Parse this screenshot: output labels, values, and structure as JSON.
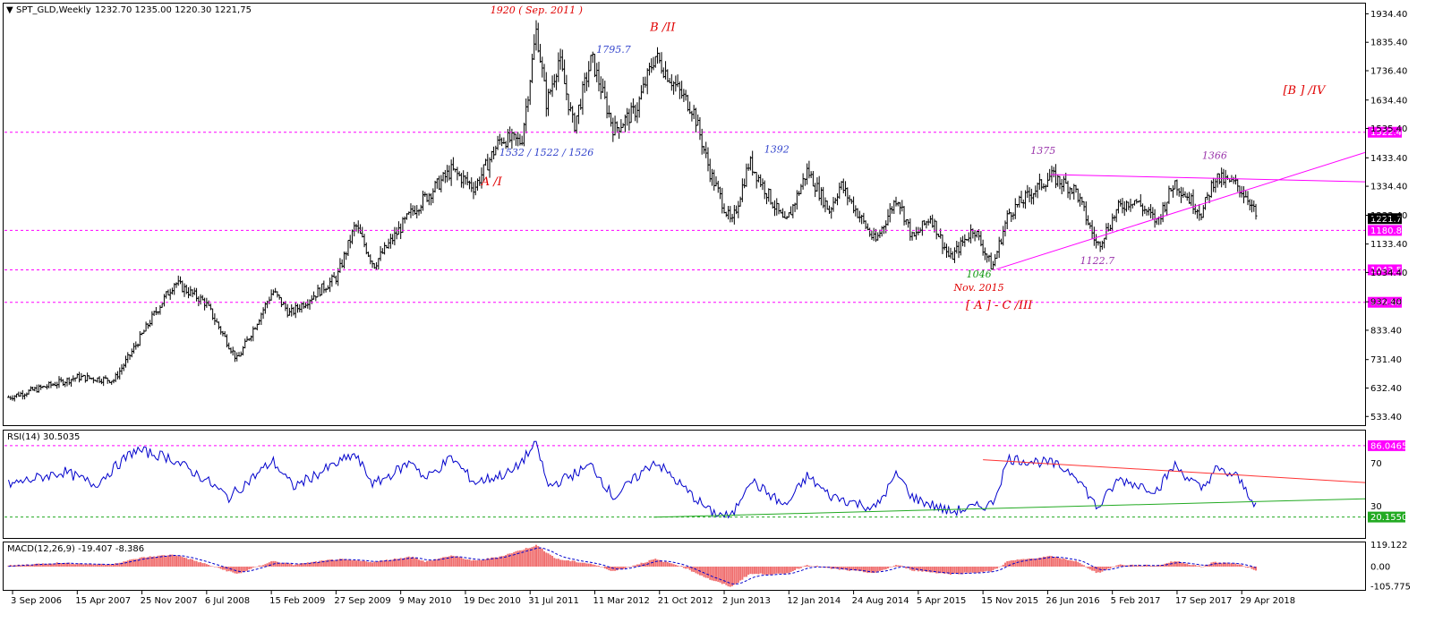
{
  "window": {
    "title": "SPT_GLD,Weekly",
    "ohlc": "1232.70 1235.00 1220.30 1221,75"
  },
  "colors": {
    "bar": "#000000",
    "hline": "#ff00ff",
    "wave_red": "#e00000",
    "wave_blue": "#3344cc",
    "wave_purple": "#9933aa",
    "wave_green": "#119911",
    "rsi_line": "#0000cc",
    "rsi_res": "#ff3333",
    "rsi_sup": "#22aa22",
    "macd_hist": "#f07070",
    "macd_signal": "#0000cc"
  },
  "chart_data": {
    "type": "candlestick",
    "price_axis_ticks": [
      "1934.40",
      "1835.40",
      "1736.40",
      "1634.40",
      "1535.40",
      "1433.40",
      "1334.40",
      "1233.40",
      "1133.40",
      "1034.40",
      "932.40",
      "833.40",
      "731.40",
      "632.40",
      "533.40"
    ],
    "price_range": [
      500,
      1970
    ],
    "time_range": [
      "2006-08-06",
      "2019-06-30"
    ],
    "x_ticks": [
      "3 Sep 2006",
      "15 Apr 2007",
      "25 Nov 2007",
      "6 Jul 2008",
      "15 Feb 2009",
      "27 Sep 2009",
      "9 May 2010",
      "19 Dec 2010",
      "31 Jul 2011",
      "11 Mar 2012",
      "21 Oct 2012",
      "2 Jun 2013",
      "12 Jan 2014",
      "24 Aug 2014",
      "5 Apr 2015",
      "15 Nov 2015",
      "26 Jun 2016",
      "5 Feb 2017",
      "17 Sep 2017",
      "29 Apr 2018"
    ],
    "price_path": [
      [
        "2006-08-20",
        600
      ],
      [
        "2006-12-01",
        630
      ],
      [
        "2007-04-15",
        670
      ],
      [
        "2007-08-20",
        660
      ],
      [
        "2007-10-10",
        740
      ],
      [
        "2008-01-01",
        880
      ],
      [
        "2008-03-17",
        1000
      ],
      [
        "2008-07-01",
        930
      ],
      [
        "2008-10-20",
        730
      ],
      [
        "2009-02-20",
        970
      ],
      [
        "2009-04-20",
        890
      ],
      [
        "2009-10-01",
        1020
      ],
      [
        "2009-12-03",
        1200
      ],
      [
        "2010-02-05",
        1060
      ],
      [
        "2010-06-20",
        1250
      ],
      [
        "2010-11-01",
        1390
      ],
      [
        "2011-01-20",
        1330
      ],
      [
        "2011-04-20",
        1500
      ],
      [
        "2011-07-01",
        1490
      ],
      [
        "2011-08-22",
        1880
      ],
      [
        "2011-09-26",
        1620
      ],
      [
        "2011-11-08",
        1780
      ],
      [
        "2011-12-29",
        1540
      ],
      [
        "2012-02-29",
        1780
      ],
      [
        "2012-05-16",
        1530
      ],
      [
        "2012-08-01",
        1600
      ],
      [
        "2012-10-05",
        1790
      ],
      [
        "2012-12-31",
        1660
      ],
      [
        "2013-02-15",
        1600
      ],
      [
        "2013-04-15",
        1380
      ],
      [
        "2013-06-28",
        1200
      ],
      [
        "2013-08-28",
        1420
      ],
      [
        "2013-12-31",
        1200
      ],
      [
        "2014-03-17",
        1390
      ],
      [
        "2014-06-01",
        1250
      ],
      [
        "2014-07-10",
        1340
      ],
      [
        "2014-11-07",
        1140
      ],
      [
        "2015-01-22",
        1300
      ],
      [
        "2015-03-17",
        1150
      ],
      [
        "2015-05-18",
        1230
      ],
      [
        "2015-07-24",
        1080
      ],
      [
        "2015-10-14",
        1190
      ],
      [
        "2015-12-17",
        1050
      ],
      [
        "2016-02-11",
        1240
      ],
      [
        "2016-07-06",
        1370
      ],
      [
        "2016-10-01",
        1320
      ],
      [
        "2016-12-15",
        1125
      ],
      [
        "2017-02-27",
        1260
      ],
      [
        "2017-04-20",
        1290
      ],
      [
        "2017-07-10",
        1210
      ],
      [
        "2017-09-08",
        1350
      ],
      [
        "2017-12-12",
        1240
      ],
      [
        "2018-01-25",
        1365
      ],
      [
        "2018-04-10",
        1340
      ],
      [
        "2018-05-25",
        1290
      ],
      [
        "2018-06-20",
        1221.75
      ]
    ],
    "horizontal_levels": [
      {
        "value": 1522.4,
        "label": "1522.40"
      },
      {
        "value": 1180.8,
        "label": "1180.80"
      },
      {
        "value": 1043.58,
        "label": "1043.58"
      },
      {
        "value": 930.69,
        "label": "930.69"
      }
    ],
    "current_price": "1221.75",
    "trend_lines": [
      {
        "from": [
          "2016-01-01",
          1046
        ],
        "to": [
          "2019-06-30",
          1452
        ]
      },
      {
        "from": [
          "2016-07-06",
          1375
        ],
        "to": [
          "2019-06-30",
          1350
        ]
      }
    ],
    "annotations": [
      {
        "text": "1920  ( Sep. 2011 )",
        "date": "2011-08-22",
        "price": 1935,
        "style": "red"
      },
      {
        "text": "B  /II",
        "date": "2012-11-01",
        "price": 1875,
        "style": "red-big"
      },
      {
        "text": "1795.7",
        "date": "2012-05-15",
        "price": 1798,
        "style": "blue"
      },
      {
        "text": "1532 / 1522 / 1526",
        "date": "2011-09-26",
        "price": 1441,
        "style": "blue"
      },
      {
        "text": "1392",
        "date": "2013-12-01",
        "price": 1451,
        "style": "blue"
      },
      {
        "text": "A  /I",
        "date": "2011-03-20",
        "price": 1338,
        "style": "red-big"
      },
      {
        "text": "1375",
        "date": "2016-06-10",
        "price": 1447,
        "style": "purple"
      },
      {
        "text": "1366",
        "date": "2018-01-25",
        "price": 1430,
        "style": "purple"
      },
      {
        "text": "[B ]  /IV",
        "date": "2018-12-01",
        "price": 1656,
        "style": "red-big"
      },
      {
        "text": "1122.7",
        "date": "2016-12-15",
        "price": 1064,
        "style": "purple"
      },
      {
        "text": "1046",
        "date": "2015-11-01",
        "price": 1017,
        "style": "green"
      },
      {
        "text": "Nov. 2015",
        "date": "2015-11-01",
        "price": 970,
        "style": "red"
      },
      {
        "text": "[ A ]  - C /III",
        "date": "2016-01-10",
        "price": 908,
        "style": "red-big"
      }
    ],
    "rsi": {
      "label": "RSI(14) 30.5035",
      "range": [
        0,
        100
      ],
      "ticks": [
        "70",
        "30"
      ],
      "levels": [
        {
          "value": 86.0465,
          "label": "86.0465"
        },
        {
          "value": 20.155,
          "label": "20.1550"
        }
      ],
      "path": [
        [
          "2006-08-20",
          50
        ],
        [
          "2007-03-01",
          62
        ],
        [
          "2007-06-15",
          50
        ],
        [
          "2007-11-01",
          82
        ],
        [
          "2008-03-01",
          75
        ],
        [
          "2008-07-01",
          55
        ],
        [
          "2008-09-20",
          38
        ],
        [
          "2009-02-20",
          72
        ],
        [
          "2009-05-01",
          48
        ],
        [
          "2009-11-30",
          78
        ],
        [
          "2010-02-05",
          50
        ],
        [
          "2010-06-20",
          72
        ],
        [
          "2010-08-01",
          55
        ],
        [
          "2010-11-01",
          75
        ],
        [
          "2011-01-20",
          52
        ],
        [
          "2011-06-01",
          62
        ],
        [
          "2011-08-22",
          88
        ],
        [
          "2011-10-01",
          48
        ],
        [
          "2012-02-29",
          68
        ],
        [
          "2012-05-16",
          38
        ],
        [
          "2012-10-05",
          72
        ],
        [
          "2013-01-01",
          50
        ],
        [
          "2013-04-15",
          25
        ],
        [
          "2013-06-28",
          20
        ],
        [
          "2013-08-28",
          55
        ],
        [
          "2013-12-31",
          30
        ],
        [
          "2014-03-17",
          58
        ],
        [
          "2014-06-01",
          40
        ],
        [
          "2014-11-07",
          28
        ],
        [
          "2015-01-22",
          60
        ],
        [
          "2015-03-17",
          38
        ],
        [
          "2015-07-24",
          25
        ],
        [
          "2015-12-17",
          32
        ],
        [
          "2016-02-11",
          74
        ],
        [
          "2016-07-06",
          70
        ],
        [
          "2016-10-01",
          60
        ],
        [
          "2016-12-15",
          28
        ],
        [
          "2017-02-27",
          55
        ],
        [
          "2017-07-10",
          45
        ],
        [
          "2017-09-08",
          68
        ],
        [
          "2017-12-12",
          45
        ],
        [
          "2018-01-25",
          64
        ],
        [
          "2018-04-10",
          58
        ],
        [
          "2018-06-20",
          30.5
        ]
      ],
      "res_line": {
        "from": [
          "2015-11-15",
          73
        ],
        "to": [
          "2019-06-30",
          52
        ]
      },
      "sup_line": {
        "from": [
          "2012-10-01",
          20
        ],
        "to": [
          "2019-06-30",
          37
        ]
      }
    },
    "macd": {
      "label": "MACD(12,26,9) -19.407 -8.386",
      "range": [
        -130,
        130
      ],
      "ticks": [
        "119.122",
        "0.00",
        "-105.775"
      ],
      "hist_path": [
        [
          "2006-08-20",
          5
        ],
        [
          "2007-02-01",
          20
        ],
        [
          "2007-08-01",
          10
        ],
        [
          "2007-12-01",
          50
        ],
        [
          "2008-03-17",
          65
        ],
        [
          "2008-07-01",
          15
        ],
        [
          "2008-10-20",
          -40
        ],
        [
          "2009-02-20",
          30
        ],
        [
          "2009-05-01",
          10
        ],
        [
          "2009-10-01",
          40
        ],
        [
          "2010-02-05",
          25
        ],
        [
          "2010-06-20",
          55
        ],
        [
          "2010-08-01",
          25
        ],
        [
          "2010-11-01",
          60
        ],
        [
          "2011-01-20",
          30
        ],
        [
          "2011-04-20",
          55
        ],
        [
          "2011-08-22",
          115
        ],
        [
          "2011-11-01",
          40
        ],
        [
          "2012-02-29",
          15
        ],
        [
          "2012-05-16",
          -25
        ],
        [
          "2012-10-05",
          40
        ],
        [
          "2013-01-01",
          5
        ],
        [
          "2013-04-15",
          -70
        ],
        [
          "2013-06-28",
          -110
        ],
        [
          "2013-08-28",
          -40
        ],
        [
          "2013-12-31",
          -40
        ],
        [
          "2014-03-17",
          10
        ],
        [
          "2014-06-01",
          -10
        ],
        [
          "2014-11-07",
          -35
        ],
        [
          "2015-01-22",
          10
        ],
        [
          "2015-03-17",
          -20
        ],
        [
          "2015-07-24",
          -40
        ],
        [
          "2015-12-17",
          -25
        ],
        [
          "2016-02-11",
          30
        ],
        [
          "2016-07-06",
          55
        ],
        [
          "2016-10-01",
          30
        ],
        [
          "2016-12-15",
          -35
        ],
        [
          "2017-02-27",
          10
        ],
        [
          "2017-07-10",
          5
        ],
        [
          "2017-09-08",
          30
        ],
        [
          "2017-12-12",
          0
        ],
        [
          "2018-01-25",
          25
        ],
        [
          "2018-04-10",
          15
        ],
        [
          "2018-06-20",
          -19
        ]
      ]
    }
  }
}
